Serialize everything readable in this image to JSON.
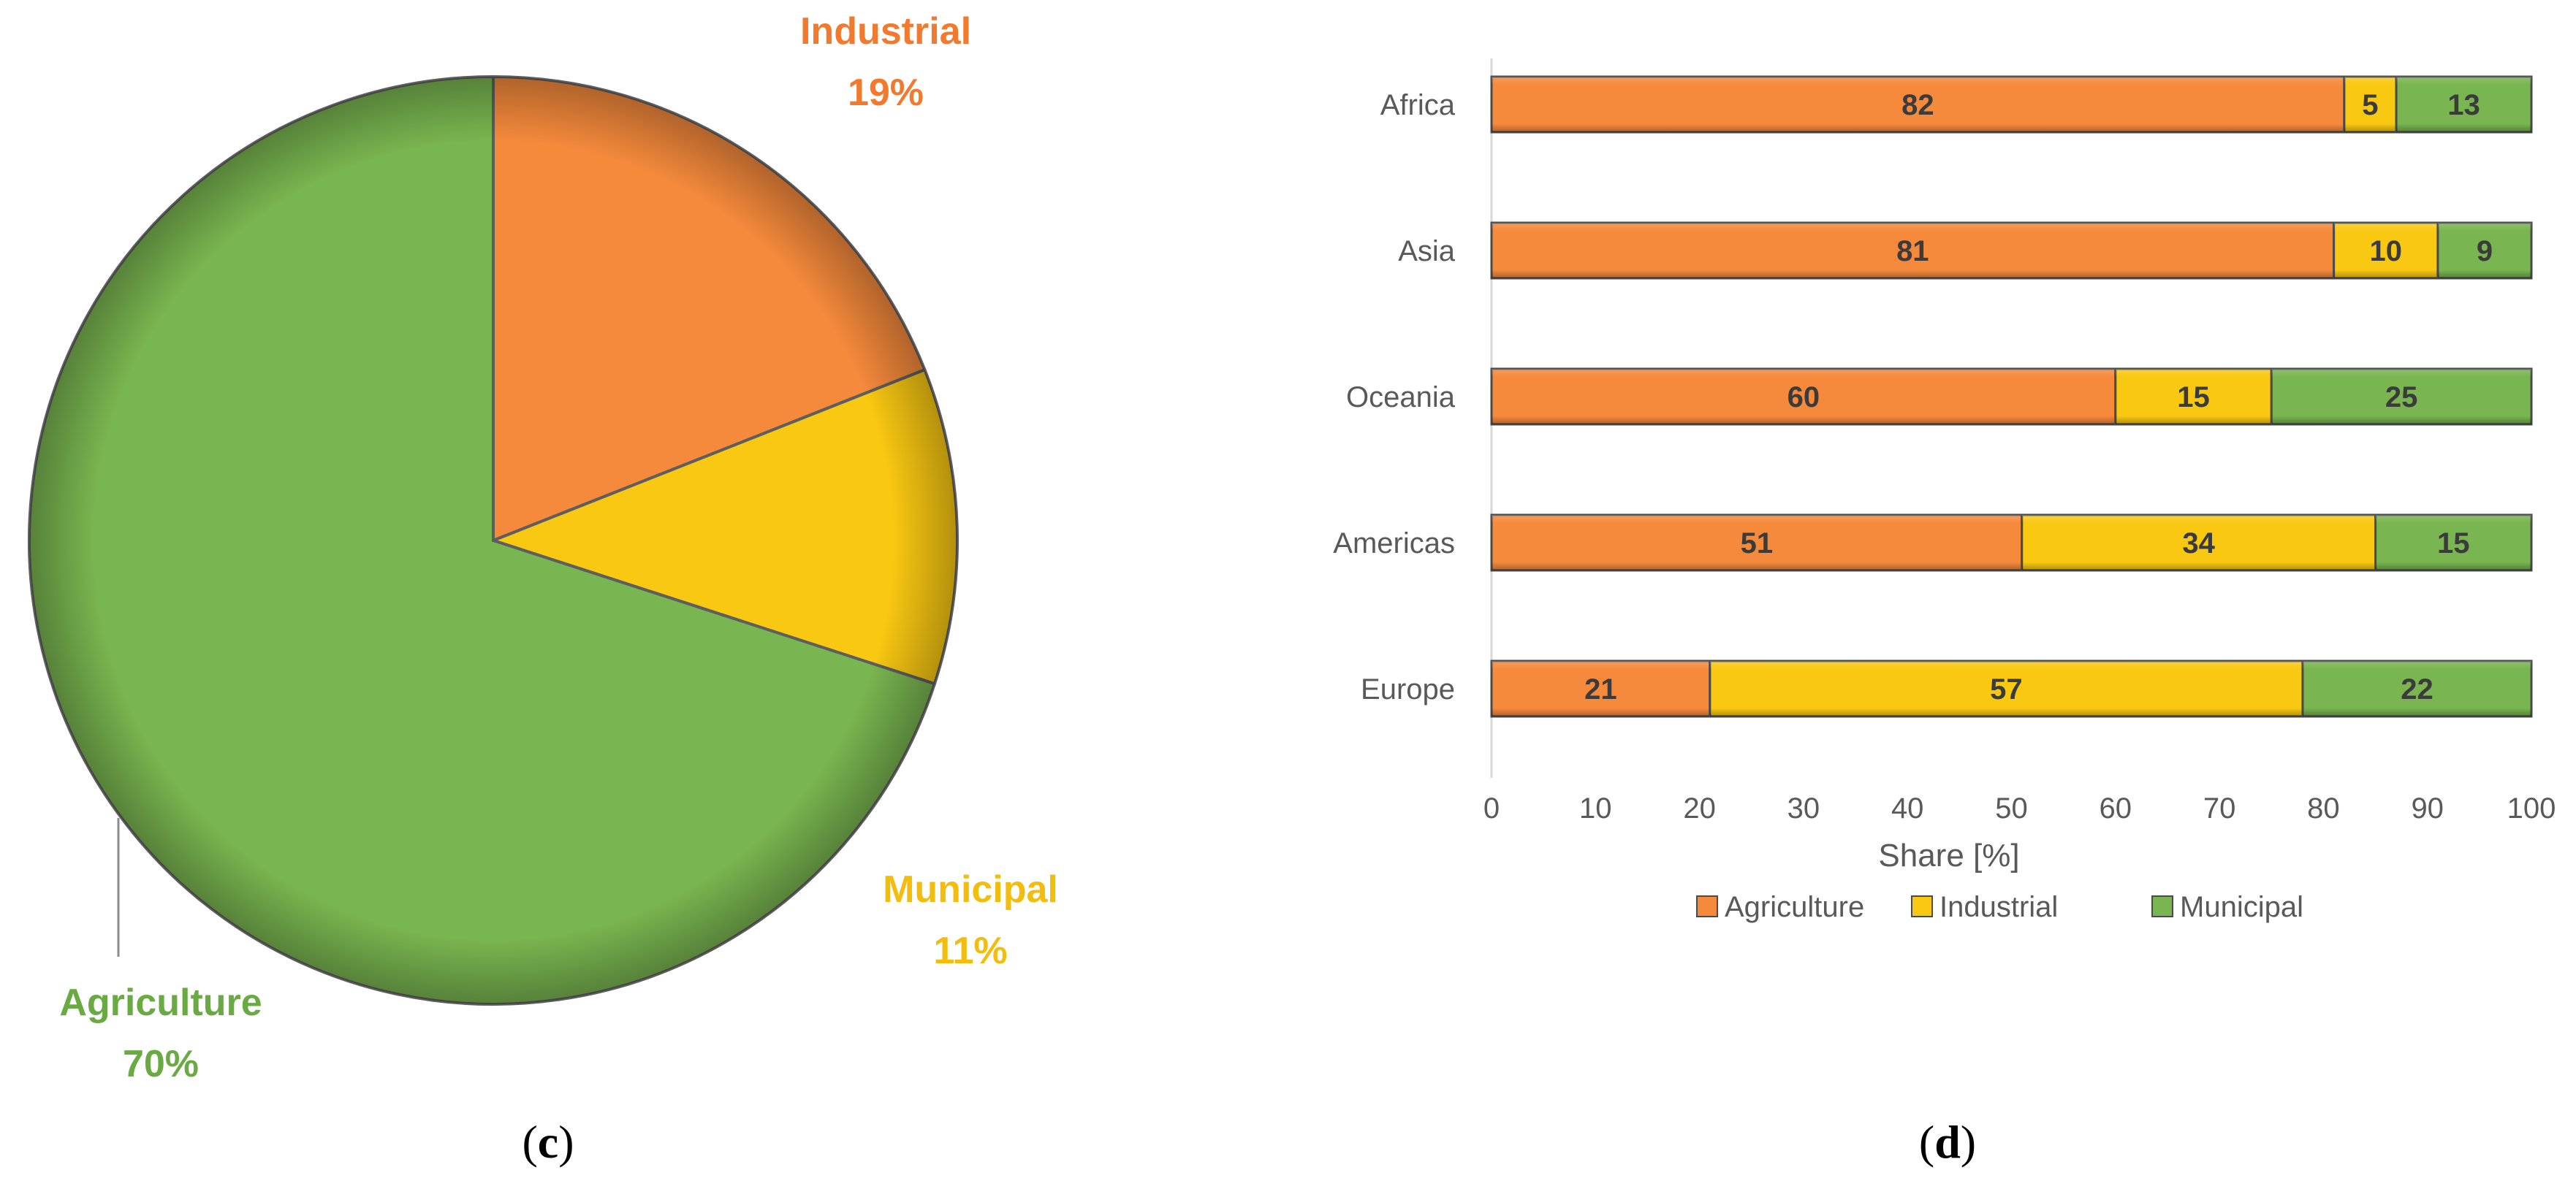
{
  "chart_data": [
    {
      "type": "pie",
      "slices": [
        {
          "label": "Industrial",
          "value": 19,
          "display": "19%",
          "color": "#f58a3c"
        },
        {
          "label": "Municipal",
          "value": 11,
          "display": "11%",
          "color": "#f9c812"
        },
        {
          "label": "Agriculture",
          "value": 70,
          "display": "70%",
          "color": "#79b550"
        }
      ],
      "label_colors": {
        "Industrial": "#f27a2e",
        "Municipal": "#f3bd0f",
        "Agriculture": "#6aaa43"
      },
      "panel_label": "c",
      "start_slice": "Industrial",
      "direction": "clockwise-from-top"
    },
    {
      "type": "bar",
      "orientation": "horizontal",
      "stacked": true,
      "categories": [
        "Africa",
        "Asia",
        "Oceania",
        "Americas",
        "Europe"
      ],
      "series": [
        {
          "name": "Agriculture",
          "values": [
            82,
            81,
            60,
            51,
            21
          ],
          "color": "#f58a3c",
          "label_color": "#3b3b3b"
        },
        {
          "name": "Industrial",
          "values": [
            5,
            10,
            15,
            34,
            57
          ],
          "color": "#f9c812",
          "label_color": "#3b3b3b"
        },
        {
          "name": "Municipal",
          "values": [
            13,
            9,
            25,
            15,
            22
          ],
          "color": "#79b550",
          "label_color": "#3b3b3b"
        }
      ],
      "xlim": [
        0,
        100
      ],
      "xticks": [
        0,
        10,
        20,
        30,
        40,
        50,
        60,
        70,
        80,
        90,
        100
      ],
      "xlabel": "Share [%]",
      "ylabel": "",
      "grid": false,
      "legend": {
        "position": "bottom",
        "items": [
          "Agriculture",
          "Industrial",
          "Municipal"
        ]
      },
      "panel_label": "d"
    }
  ]
}
